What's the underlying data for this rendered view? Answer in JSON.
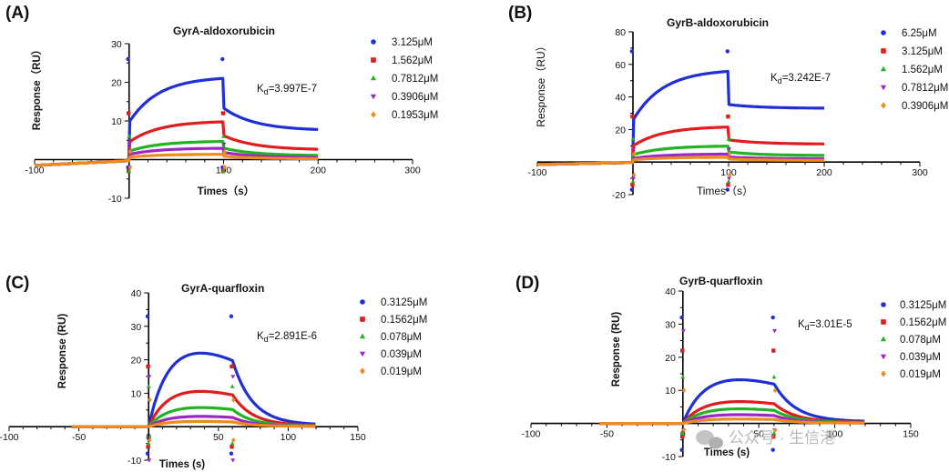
{
  "watermark": "公众号 · 生信港",
  "panels": [
    {
      "label": "(A)",
      "chart_data": {
        "type": "line",
        "title": "GyrA-aldoxorubicin",
        "xlabel": "Times（s）",
        "ylabel": "Response（RU）",
        "xlim": [
          -100,
          300
        ],
        "ylim": [
          -10,
          30
        ],
        "xticks": [
          -100,
          100,
          200,
          300
        ],
        "yticks": [
          -10,
          10,
          20,
          30
        ],
        "xtick_labels": [
          "-100",
          "100",
          "200",
          "300"
        ],
        "ytick_labels": [
          "-10",
          "10",
          "20",
          "30"
        ],
        "kd_label": "Kd=3.997E-7",
        "assoc": [
          0,
          100
        ],
        "x_end": 200,
        "series": [
          {
            "name": "3.125μM",
            "color": "#1f2fd6",
            "marker": "circle",
            "plateau": 21.5,
            "end": 7.5,
            "spike_hi": 26,
            "spike_lo": -2
          },
          {
            "name": "1.562μM",
            "color": "#e01c1c",
            "marker": "square",
            "plateau": 10.0,
            "end": 2.5,
            "spike_hi": 12,
            "spike_lo": -3
          },
          {
            "name": "0.7812μM",
            "color": "#22b322",
            "marker": "triangle-up",
            "plateau": 4.8,
            "end": 1.0,
            "spike_hi": 6,
            "spike_lo": -3
          },
          {
            "name": "0.3906μM",
            "color": "#9b27c9",
            "marker": "triangle-down",
            "plateau": 3.0,
            "end": 0.5,
            "spike_hi": 4,
            "spike_lo": -2
          },
          {
            "name": "0.1953μM",
            "color": "#f08a1c",
            "marker": "diamond",
            "plateau": 1.4,
            "end": 0.2,
            "spike_hi": 2,
            "spike_lo": -2
          }
        ]
      }
    },
    {
      "label": "(B)",
      "chart_data": {
        "type": "line",
        "title": "GyrB-aldoxorubicin",
        "xlabel": "Times（s）",
        "ylabel": "Response（RU）",
        "xlim": [
          -100,
          300
        ],
        "ylim": [
          -20,
          80
        ],
        "xticks": [
          -100,
          100,
          200,
          300
        ],
        "yticks": [
          -20,
          20,
          40,
          60,
          80
        ],
        "xtick_labels": [
          "-100",
          "100",
          "200",
          "300"
        ],
        "ytick_labels": [
          "-20",
          "20",
          "40",
          "60",
          "80"
        ],
        "kd_label": "Kd=3.242E-7",
        "assoc": [
          0,
          100
        ],
        "x_end": 200,
        "series": [
          {
            "name": "6.25μM",
            "color": "#1f2fd6",
            "marker": "circle",
            "plateau": 57,
            "end": 33,
            "spike_hi": 68,
            "spike_lo": -17
          },
          {
            "name": "3.125μM",
            "color": "#e01c1c",
            "marker": "square",
            "plateau": 22,
            "end": 11,
            "spike_hi": 28,
            "spike_lo": -14
          },
          {
            "name": "1.562μM",
            "color": "#22b322",
            "marker": "triangle-up",
            "plateau": 10,
            "end": 4,
            "spike_hi": 14,
            "spike_lo": -12
          },
          {
            "name": "0.7812μM",
            "color": "#9b27c9",
            "marker": "triangle-down",
            "plateau": 5,
            "end": 2,
            "spike_hi": 8,
            "spike_lo": -10
          },
          {
            "name": "0.3906μM",
            "color": "#f08a1c",
            "marker": "diamond",
            "plateau": 3,
            "end": 1,
            "spike_hi": 5,
            "spike_lo": -8
          }
        ]
      }
    },
    {
      "label": "(C)",
      "chart_data": {
        "type": "line",
        "title": "GyrA-quarfloxin",
        "xlabel": "Times (s)",
        "ylabel": "Response (RU)",
        "xlim": [
          -100,
          150
        ],
        "ylim": [
          -10,
          40
        ],
        "xticks": [
          -100,
          -50,
          0,
          50,
          100,
          150
        ],
        "yticks": [
          -10,
          10,
          20,
          30,
          40
        ],
        "xtick_labels": [
          "-100",
          "-50",
          "0",
          "50",
          "100",
          "150"
        ],
        "ytick_labels": [
          "-10",
          "10",
          "20",
          "30",
          "40"
        ],
        "kd_label": "Kd=2.891E-6",
        "assoc": [
          0,
          60
        ],
        "x_end": 120,
        "start": -55,
        "series": [
          {
            "name": "0.3125μM",
            "color": "#1f2fd6",
            "marker": "circle",
            "plateau": 25,
            "end": 0.5,
            "spike_hi": 33,
            "spike_lo": -8
          },
          {
            "name": "0.1562μM",
            "color": "#e01c1c",
            "marker": "square",
            "plateau": 12,
            "end": 0.3,
            "spike_hi": 18,
            "spike_lo": -6
          },
          {
            "name": "0.078μM",
            "color": "#22b322",
            "marker": "triangle-up",
            "plateau": 6.5,
            "end": 0.2,
            "spike_hi": 12,
            "spike_lo": -5
          },
          {
            "name": "0.039μM",
            "color": "#9b27c9",
            "marker": "triangle-down",
            "plateau": 3.5,
            "end": 0.1,
            "spike_hi": 15,
            "spike_lo": -10
          },
          {
            "name": "0.019μM",
            "color": "#f08a1c",
            "marker": "diamond",
            "plateau": 1.8,
            "end": 0.1,
            "spike_hi": 8,
            "spike_lo": -4
          }
        ]
      }
    },
    {
      "label": "(D)",
      "chart_data": {
        "type": "line",
        "title": "GyrB-quarfloxin",
        "xlabel": "Times (s)",
        "ylabel": "Response (RU)",
        "xlim": [
          -100,
          150
        ],
        "ylim": [
          -10,
          40
        ],
        "xticks": [
          -100,
          -50,
          0,
          50,
          100,
          150
        ],
        "yticks": [
          -10,
          10,
          20,
          30,
          40
        ],
        "xtick_labels": [
          "-100",
          "-50",
          "0",
          "50",
          "100",
          "150"
        ],
        "ytick_labels": [
          "-10",
          "10",
          "20",
          "30",
          "40"
        ],
        "kd_label": "Kd=3.01E-5",
        "assoc": [
          0,
          60
        ],
        "x_end": 120,
        "start": -55,
        "series": [
          {
            "name": "0.3125μM",
            "color": "#1f2fd6",
            "marker": "circle",
            "plateau": 15,
            "end": 0.5,
            "spike_hi": 32,
            "spike_lo": -8
          },
          {
            "name": "0.1562μM",
            "color": "#e01c1c",
            "marker": "square",
            "plateau": 7.5,
            "end": 0.3,
            "spike_hi": 22,
            "spike_lo": -4
          },
          {
            "name": "0.078μM",
            "color": "#22b322",
            "marker": "triangle-up",
            "plateau": 5,
            "end": 0.2,
            "spike_hi": 14,
            "spike_lo": -3
          },
          {
            "name": "0.039μM",
            "color": "#9b27c9",
            "marker": "triangle-down",
            "plateau": 3,
            "end": 0.1,
            "spike_hi": 28,
            "spike_lo": -2
          },
          {
            "name": "0.019μM",
            "color": "#f08a1c",
            "marker": "diamond",
            "plateau": 1.5,
            "end": 0.1,
            "spike_hi": 10,
            "spike_lo": -2
          }
        ]
      }
    }
  ]
}
